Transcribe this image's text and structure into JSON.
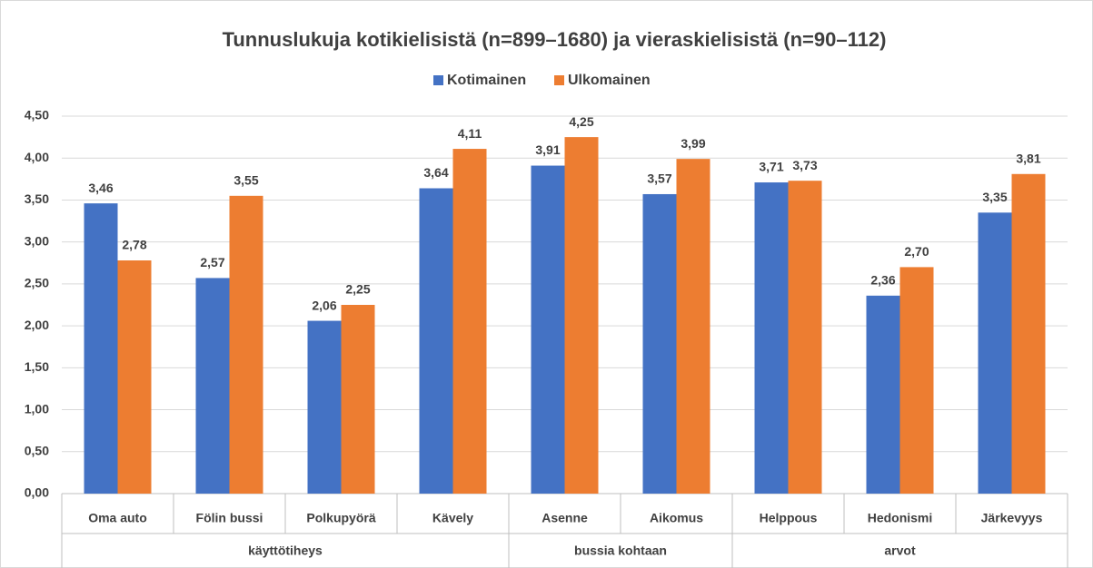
{
  "chart_data": {
    "type": "bar",
    "title": "Tunnuslukuja kotikielisistä (n=899–1680) ja vieraskielisistä (n=90–112)",
    "categories": [
      "Oma auto",
      "Fölin bussi",
      "Polkupyörä",
      "Kävely",
      "Asenne",
      "Aikomus",
      "Helppous",
      "Hedonismi",
      "Järkevyys"
    ],
    "category_groups": [
      "käyttötiheys",
      "käyttötiheys",
      "käyttötiheys",
      "käyttötiheys",
      "bussia kohtaan",
      "bussia kohtaan",
      "arvot",
      "arvot",
      "arvot"
    ],
    "series": [
      {
        "name": "Kotimainen",
        "color": "#4472c4",
        "values": [
          3.46,
          2.57,
          2.06,
          3.64,
          3.91,
          3.57,
          3.71,
          2.36,
          3.35
        ],
        "value_labels": [
          "3,46",
          "2,57",
          "2,06",
          "3,64",
          "3,91",
          "3,57",
          "3,71",
          "2,36",
          "3,35"
        ]
      },
      {
        "name": "Ulkomainen",
        "color": "#ed7d31",
        "values": [
          2.78,
          3.55,
          2.25,
          4.11,
          4.25,
          3.99,
          3.73,
          2.7,
          3.81
        ],
        "value_labels": [
          "2,78",
          "3,55",
          "2,25",
          "4,11",
          "4,25",
          "3,99",
          "3,73",
          "2,70",
          "3,81"
        ]
      }
    ],
    "ylim": [
      0,
      4.5
    ],
    "yticks": [
      {
        "value": 0,
        "label": "0,00"
      },
      {
        "value": 0.5,
        "label": "0,50"
      },
      {
        "value": 1,
        "label": "1,00"
      },
      {
        "value": 1.5,
        "label": "1,50"
      },
      {
        "value": 2,
        "label": "2,00"
      },
      {
        "value": 2.5,
        "label": "2,50"
      },
      {
        "value": 3,
        "label": "3,00"
      },
      {
        "value": 3.5,
        "label": "3,50"
      },
      {
        "value": 4,
        "label": "4,00"
      },
      {
        "value": 4.5,
        "label": "4,50"
      }
    ],
    "grid": true,
    "legend": "top"
  }
}
